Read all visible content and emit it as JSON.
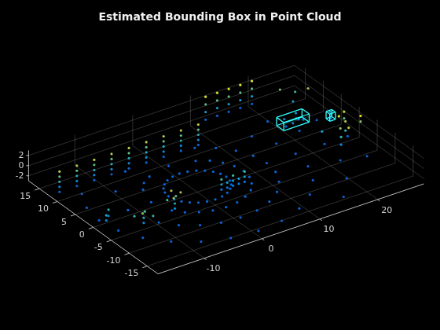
{
  "chart_data": {
    "type": "scatter3d",
    "title": "Estimated Bounding Box in Point Cloud",
    "xlim": [
      -18,
      28
    ],
    "xticks": [
      -10,
      0,
      10,
      20
    ],
    "ylim": [
      -18,
      18
    ],
    "yticks": [
      -15,
      -10,
      -5,
      0,
      5,
      10,
      15
    ],
    "zlim": [
      -3,
      3
    ],
    "zticks": [
      -2,
      0,
      2
    ],
    "grid": true,
    "points": [
      [
        5,
        0,
        -1.9
      ],
      [
        4.3,
        2.5,
        -1.9
      ],
      [
        2.5,
        4.3,
        -1.9
      ],
      [
        0,
        5,
        -1.9
      ],
      [
        -2.5,
        4.3,
        -1.9
      ],
      [
        -4.3,
        2.5,
        -1.9
      ],
      [
        -5,
        0,
        -1.9
      ],
      [
        -4.3,
        -2.5,
        -1.9
      ],
      [
        -2.5,
        -4.3,
        -1.9
      ],
      [
        0,
        -5,
        -1.9
      ],
      [
        2.5,
        -4.3,
        -1.9
      ],
      [
        4.3,
        -2.5,
        -1.9
      ],
      [
        4.8,
        1.3,
        -1.9
      ],
      [
        1.3,
        4.8,
        -1.9
      ],
      [
        -1.3,
        4.8,
        -1.9
      ],
      [
        -4.8,
        1.3,
        -1.9
      ],
      [
        -4.8,
        -1.3,
        -1.9
      ],
      [
        -1.3,
        -4.8,
        -1.9
      ],
      [
        1.3,
        -4.8,
        -1.9
      ],
      [
        4.8,
        -1.3,
        -1.9
      ],
      [
        3.5,
        3.5,
        -1.9
      ],
      [
        -3.5,
        3.5,
        -1.9
      ],
      [
        -3.5,
        -3.5,
        -1.9
      ],
      [
        3.5,
        -3.5,
        -1.9
      ],
      [
        8,
        0,
        -1.9
      ],
      [
        6.9,
        4,
        -1.9
      ],
      [
        4,
        6.9,
        -1.9
      ],
      [
        0,
        8,
        -1.9
      ],
      [
        -4,
        6.9,
        -1.9
      ],
      [
        -6.9,
        4,
        -1.9
      ],
      [
        -8,
        0,
        -1.9
      ],
      [
        -6.9,
        -4,
        -1.9
      ],
      [
        -4,
        -6.9,
        -1.9
      ],
      [
        0,
        -8,
        -1.9
      ],
      [
        4,
        -6.9,
        -1.9
      ],
      [
        6.9,
        -4,
        -1.9
      ],
      [
        7.7,
        2.1,
        -1.9
      ],
      [
        7.7,
        -2.1,
        -1.9
      ],
      [
        5.7,
        5.7,
        -1.9
      ],
      [
        5.7,
        -5.7,
        -1.9
      ],
      [
        -5.7,
        5.7,
        -1.9
      ],
      [
        -5.7,
        -5.7,
        -1.9
      ],
      [
        2.1,
        -7.7,
        -1.9
      ],
      [
        -2.1,
        -7.7,
        -1.9
      ],
      [
        12,
        0,
        -1.9
      ],
      [
        10.4,
        6,
        -1.9
      ],
      [
        6,
        10.4,
        -1.9
      ],
      [
        -6,
        10.4,
        -1.9
      ],
      [
        -10.4,
        6,
        -1.9
      ],
      [
        -12,
        0,
        -1.9
      ],
      [
        -10.4,
        -6,
        -1.9
      ],
      [
        -6,
        -10.4,
        -1.9
      ],
      [
        0,
        -12,
        -1.9
      ],
      [
        6,
        -10.4,
        -1.9
      ],
      [
        10.4,
        -6,
        -1.9
      ],
      [
        11.6,
        3.1,
        -1.9
      ],
      [
        11.6,
        -3.1,
        -1.9
      ],
      [
        8.5,
        -8.5,
        -1.9
      ],
      [
        -8.5,
        -8.5,
        -1.9
      ],
      [
        3.1,
        -11.6,
        -1.9
      ],
      [
        -3.1,
        -11.6,
        -1.9
      ],
      [
        8.5,
        8.5,
        -1.9
      ],
      [
        17,
        0,
        -2
      ],
      [
        16.4,
        4.4,
        -2
      ],
      [
        14.7,
        8.5,
        -2
      ],
      [
        16.4,
        -4.4,
        -2
      ],
      [
        14.7,
        -8.5,
        -2
      ],
      [
        12,
        -12,
        -2
      ],
      [
        8.5,
        -14.7,
        -2
      ],
      [
        4.4,
        -16.4,
        -2
      ],
      [
        0,
        -17,
        -2
      ],
      [
        -4.4,
        -16.4,
        -2
      ],
      [
        -8.5,
        -14.7,
        -2
      ],
      [
        -12,
        -12,
        -2
      ],
      [
        -14.7,
        -8.5,
        -2
      ],
      [
        -16.4,
        -4.4,
        -2
      ],
      [
        -17,
        0,
        -2
      ],
      [
        -16.4,
        4.4,
        -2
      ],
      [
        -14.7,
        8.5,
        -2
      ],
      [
        22,
        0,
        -2
      ],
      [
        21.2,
        5.7,
        -2
      ],
      [
        21.2,
        -5.7,
        -2
      ],
      [
        19,
        11,
        -2
      ],
      [
        19,
        -11,
        -2
      ],
      [
        15.6,
        -15.6,
        -2
      ],
      [
        26,
        0,
        -2
      ],
      [
        25,
        7,
        -2
      ],
      [
        25,
        -7,
        -2
      ],
      [
        -17,
        11,
        -2
      ],
      [
        -14,
        11,
        -2
      ],
      [
        -11,
        11,
        -2
      ],
      [
        -8,
        11,
        -2
      ],
      [
        -5,
        11,
        -2
      ],
      [
        -2,
        11,
        -2
      ],
      [
        1,
        11,
        -2
      ],
      [
        4,
        11,
        -2
      ],
      [
        7,
        11,
        -2
      ],
      [
        -17,
        11,
        -1
      ],
      [
        -14,
        11,
        -1
      ],
      [
        -11,
        11,
        -1
      ],
      [
        -8,
        11,
        -1
      ],
      [
        -5,
        11,
        -1
      ],
      [
        -2,
        11,
        -1
      ],
      [
        1,
        11,
        -1
      ],
      [
        4,
        11,
        -1
      ],
      [
        7,
        11,
        -1
      ],
      [
        -17,
        11,
        0
      ],
      [
        -14,
        11,
        0
      ],
      [
        -11,
        11,
        0
      ],
      [
        -8,
        11,
        0
      ],
      [
        -5,
        11,
        0
      ],
      [
        -2,
        11,
        0
      ],
      [
        1,
        11,
        0
      ],
      [
        4,
        11,
        0
      ],
      [
        7,
        11,
        0
      ],
      [
        -17,
        11,
        1
      ],
      [
        -14,
        11,
        1
      ],
      [
        -11,
        11,
        1
      ],
      [
        -8,
        11,
        1
      ],
      [
        -5,
        11,
        1
      ],
      [
        -2,
        11,
        1
      ],
      [
        1,
        11,
        1
      ],
      [
        4,
        11,
        1
      ],
      [
        7,
        11,
        1
      ],
      [
        -17,
        11,
        2
      ],
      [
        -14,
        11,
        2
      ],
      [
        -11,
        11,
        2
      ],
      [
        -8,
        11,
        2
      ],
      [
        -5,
        11,
        2
      ],
      [
        -2,
        11,
        2
      ],
      [
        1,
        11,
        2
      ],
      [
        4,
        11,
        2
      ],
      [
        7,
        11,
        2
      ],
      [
        12,
        17,
        -2
      ],
      [
        14,
        17,
        -2
      ],
      [
        16,
        17,
        -2
      ],
      [
        18,
        17,
        -2
      ],
      [
        20,
        17,
        -2
      ],
      [
        12,
        17,
        -0.5
      ],
      [
        14,
        17,
        -0.5
      ],
      [
        16,
        17,
        -0.5
      ],
      [
        18,
        17,
        -0.5
      ],
      [
        20,
        17,
        -0.5
      ],
      [
        12,
        17,
        1
      ],
      [
        14,
        17,
        1
      ],
      [
        16,
        17,
        1
      ],
      [
        18,
        17,
        1
      ],
      [
        20,
        17,
        1
      ],
      [
        12,
        17,
        2.5
      ],
      [
        14,
        17,
        2.5
      ],
      [
        16,
        17,
        2.5
      ],
      [
        18,
        17,
        2.5
      ],
      [
        20,
        17,
        2.5
      ],
      [
        23,
        -3,
        -1
      ],
      [
        23,
        -3,
        0.5
      ],
      [
        23.5,
        -2,
        1.5
      ],
      [
        24,
        -3.5,
        2.2
      ],
      [
        25,
        -1,
        0
      ],
      [
        25,
        -1,
        1.8
      ],
      [
        24.5,
        0,
        2.5
      ],
      [
        26,
        1,
        1
      ],
      [
        26,
        1,
        2.3
      ],
      [
        22.5,
        1.5,
        -0.5
      ],
      [
        27,
        -2,
        1.5
      ],
      [
        27,
        -2,
        2.6
      ],
      [
        24,
        12,
        -0.5
      ],
      [
        25,
        13,
        0.5
      ],
      [
        23,
        14,
        1.2
      ],
      [
        26,
        11,
        1.8
      ],
      [
        -7,
        -5,
        -1
      ],
      [
        -7,
        -5,
        0
      ],
      [
        -6.5,
        -4.5,
        1
      ],
      [
        -7.5,
        -5.5,
        1.5
      ],
      [
        -7,
        -4,
        2
      ],
      [
        -6,
        -5,
        1.8
      ],
      [
        -8,
        -4.5,
        0.8
      ],
      [
        -13,
        -6,
        -1
      ],
      [
        -13,
        -6,
        0
      ],
      [
        -12.5,
        -5.5,
        0.8
      ],
      [
        -13.5,
        -6.5,
        1.3
      ],
      [
        -12,
        -7,
        0.5
      ],
      [
        -14,
        -5,
        0.2
      ],
      [
        -17,
        -2,
        -1
      ],
      [
        -17,
        -2,
        0
      ],
      [
        -16,
        -1,
        -1
      ],
      [
        -16,
        -1,
        0.2
      ],
      [
        2,
        -3.5,
        -1.5
      ],
      [
        3,
        -3.5,
        -1.5
      ],
      [
        4,
        -3.5,
        -1.5
      ],
      [
        5,
        -3.5,
        -1.5
      ],
      [
        6,
        -3.5,
        -1.5
      ],
      [
        2,
        -3.5,
        -0.5
      ],
      [
        3,
        -3.5,
        -0.5
      ],
      [
        4,
        -3.5,
        -0.5
      ],
      [
        5,
        -3.5,
        -0.5
      ],
      [
        6,
        -3.5,
        -0.5
      ],
      [
        2,
        -3.5,
        0.5
      ],
      [
        4,
        -3.5,
        0.5
      ],
      [
        6,
        -3.5,
        0.5
      ],
      [
        20,
        7.5,
        -1.6
      ],
      [
        21,
        7.2,
        -1.2
      ],
      [
        22,
        7.2,
        -0.8
      ],
      [
        23,
        7.5,
        -1.4
      ],
      [
        21.5,
        7.1,
        -0.4
      ],
      [
        20.5,
        8.8,
        -1.0
      ],
      [
        22.5,
        8.8,
        -0.6
      ],
      [
        26.5,
        5.5,
        -1.5
      ],
      [
        26.5,
        5.5,
        -0.8
      ],
      [
        26.4,
        5.6,
        -0.2
      ]
    ],
    "boxes": [
      {
        "center": [
          21.5,
          8,
          -1.1
        ],
        "size": [
          4.4,
          2.0,
          1.6
        ],
        "color": "#33ffff"
      },
      {
        "center": [
          26.5,
          5.5,
          -0.9
        ],
        "size": [
          1.0,
          1.0,
          1.4
        ],
        "color": "#33ffff"
      }
    ]
  }
}
